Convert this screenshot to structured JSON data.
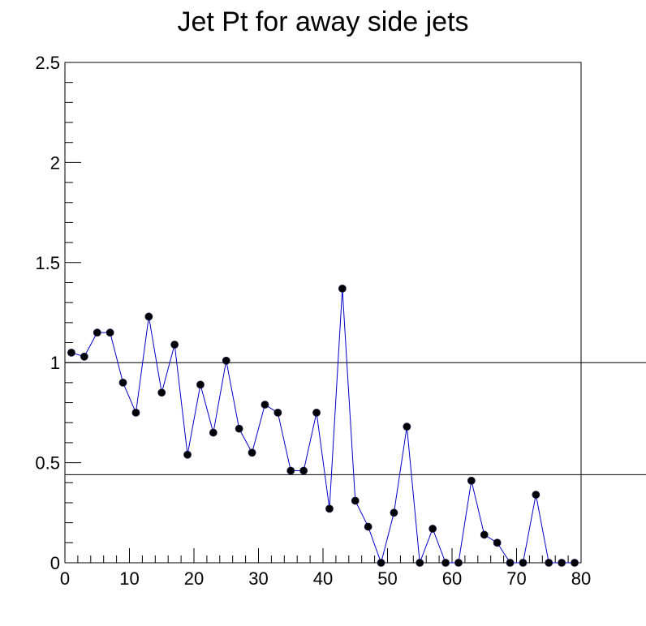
{
  "chart_data": {
    "type": "line",
    "title": "Jet Pt for away side jets",
    "xlabel": "",
    "ylabel": "",
    "xlim": [
      0,
      80
    ],
    "ylim": [
      0,
      2.5
    ],
    "x_ticks": [
      0,
      10,
      20,
      30,
      40,
      50,
      60,
      70,
      80
    ],
    "y_ticks": [
      0,
      0.5,
      1,
      1.5,
      2,
      2.5
    ],
    "y_tick_labels": [
      "0",
      "0.5",
      "1",
      "1.5",
      "2",
      "2.5"
    ],
    "grid": false,
    "legend": "none",
    "reference_lines": [
      1.0,
      0.44
    ],
    "line_color": "#0000cc",
    "marker_color": "#000000",
    "series": [
      {
        "x": [
          1,
          3,
          5,
          7,
          9,
          11,
          13,
          15,
          17,
          19,
          21,
          23,
          25,
          27,
          29,
          31,
          33,
          35,
          37,
          39,
          41,
          43,
          45,
          47,
          49,
          51,
          53,
          55,
          57,
          59,
          61,
          63,
          65,
          67,
          69,
          71,
          73,
          75,
          77,
          79
        ],
        "values": [
          1.05,
          1.03,
          1.15,
          1.15,
          0.9,
          0.75,
          1.23,
          0.85,
          1.09,
          0.54,
          0.89,
          0.65,
          1.01,
          0.67,
          0.55,
          0.79,
          0.75,
          0.46,
          0.46,
          0.75,
          0.27,
          1.37,
          0.31,
          0.18,
          0.0,
          0.25,
          0.68,
          0.0,
          0.17,
          0.0,
          0.0,
          0.41,
          0.14,
          0.1,
          0.0,
          0.0,
          0.34,
          0.0,
          0.0,
          0.0
        ]
      }
    ]
  }
}
